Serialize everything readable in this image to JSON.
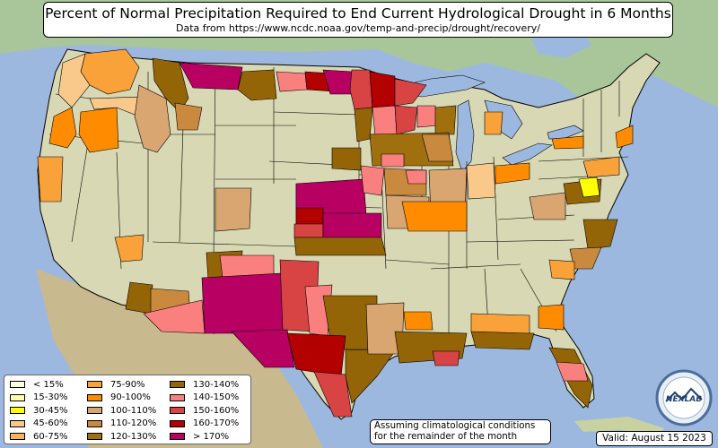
{
  "title": "Percent of Normal Precipitation Required to End Current Hydrological Drought in 6 Months",
  "subtitle": "Data from https://www.ncdc.noaa.gov/temp-and-precip/drought/recovery/",
  "legend": [
    {
      "label": "< 15%",
      "color": "#ffffe0"
    },
    {
      "label": "15-30%",
      "color": "#ffffa8"
    },
    {
      "label": "30-45%",
      "color": "#ffff00"
    },
    {
      "label": "45-60%",
      "color": "#f9c98b"
    },
    {
      "label": "60-75%",
      "color": "#f9b25e"
    },
    {
      "label": "75-90%",
      "color": "#f9a23a"
    },
    {
      "label": "90-100%",
      "color": "#ff8c00"
    },
    {
      "label": "100-110%",
      "color": "#d9a571"
    },
    {
      "label": "110-120%",
      "color": "#c98a3f"
    },
    {
      "label": "120-130%",
      "color": "#a0700e"
    },
    {
      "label": "130-140%",
      "color": "#936507"
    },
    {
      "label": "140-150%",
      "color": "#fa7f7f"
    },
    {
      "label": "150-160%",
      "color": "#d84343"
    },
    {
      "label": "160-170%",
      "color": "#b30000"
    },
    {
      "label": "> 170%",
      "color": "#b80063"
    }
  ],
  "note": [
    "Assuming climatological conditions",
    "for the remainder of the month"
  ],
  "valid": "Valid: August 15 2023",
  "logo_text": "NEXLAB"
}
